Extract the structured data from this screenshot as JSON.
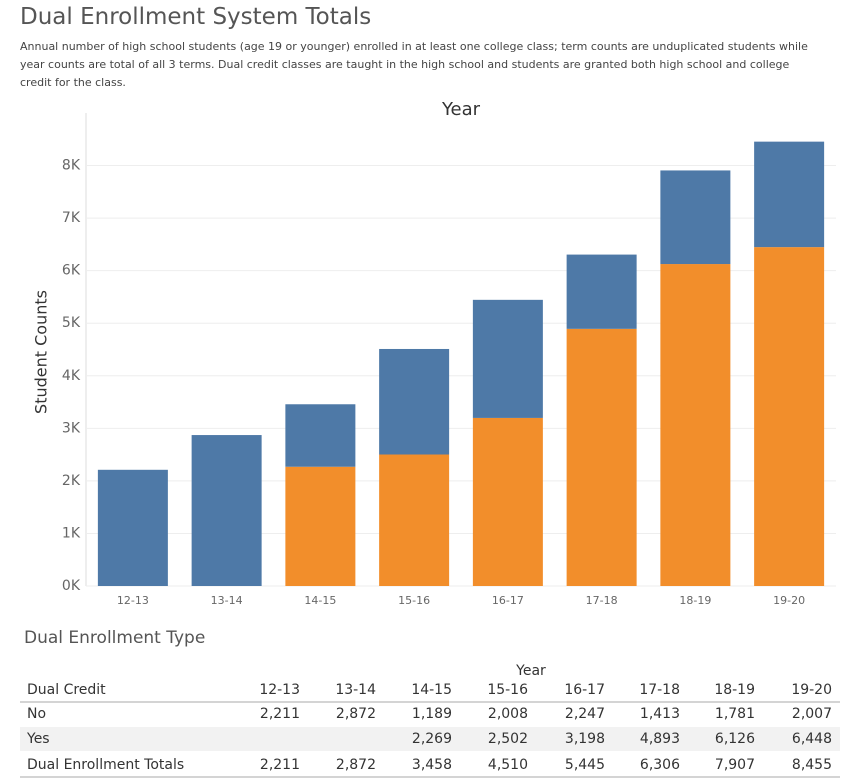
{
  "header": {
    "title": "Dual Enrollment System Totals",
    "subtitle": "Annual number of high school students (age 19 or younger) enrolled in at least one college class;  term counts are unduplicated students while year counts are total of all 3 terms.  Dual credit classes are taught in the high school and students are granted both high school and college credit for the class."
  },
  "chart_data": {
    "type": "bar",
    "stacked": true,
    "title": "Year",
    "y_label": "Student Counts",
    "categories": [
      "12-13",
      "13-14",
      "14-15",
      "15-16",
      "16-17",
      "17-18",
      "18-19",
      "19-20"
    ],
    "series": [
      {
        "name": "Yes",
        "color": "#f28e2b",
        "values": [
          null,
          null,
          2269,
          2502,
          3198,
          4893,
          6126,
          6448
        ]
      },
      {
        "name": "No",
        "color": "#4e79a7",
        "values": [
          2211,
          2872,
          1189,
          2008,
          2247,
          1413,
          1781,
          2007
        ]
      }
    ],
    "ylim": [
      0,
      9000
    ],
    "yticks": [
      {
        "value": 0,
        "label": "0K"
      },
      {
        "value": 1000,
        "label": "1K"
      },
      {
        "value": 2000,
        "label": "2K"
      },
      {
        "value": 3000,
        "label": "3K"
      },
      {
        "value": 4000,
        "label": "4K"
      },
      {
        "value": 5000,
        "label": "5K"
      },
      {
        "value": 6000,
        "label": "6K"
      },
      {
        "value": 7000,
        "label": "7K"
      },
      {
        "value": 8000,
        "label": "8K"
      }
    ],
    "grid": true
  },
  "table": {
    "title": "Dual Enrollment Type",
    "column_group": "Year",
    "row_header": "Dual Credit",
    "total_label": "Dual Enrollment Totals",
    "rows": [
      [
        "2,211",
        "2,872",
        "1,189",
        "2,008",
        "2,247",
        "1,413",
        "1,781",
        "2,007"
      ],
      [
        null,
        null,
        "2,269",
        "2,502",
        "3,198",
        "4,893",
        "6,126",
        "6,448"
      ],
      [
        "2,211",
        "2,872",
        "3,458",
        "4,510",
        "5,445",
        "6,306",
        "7,907",
        "8,455"
      ]
    ]
  }
}
